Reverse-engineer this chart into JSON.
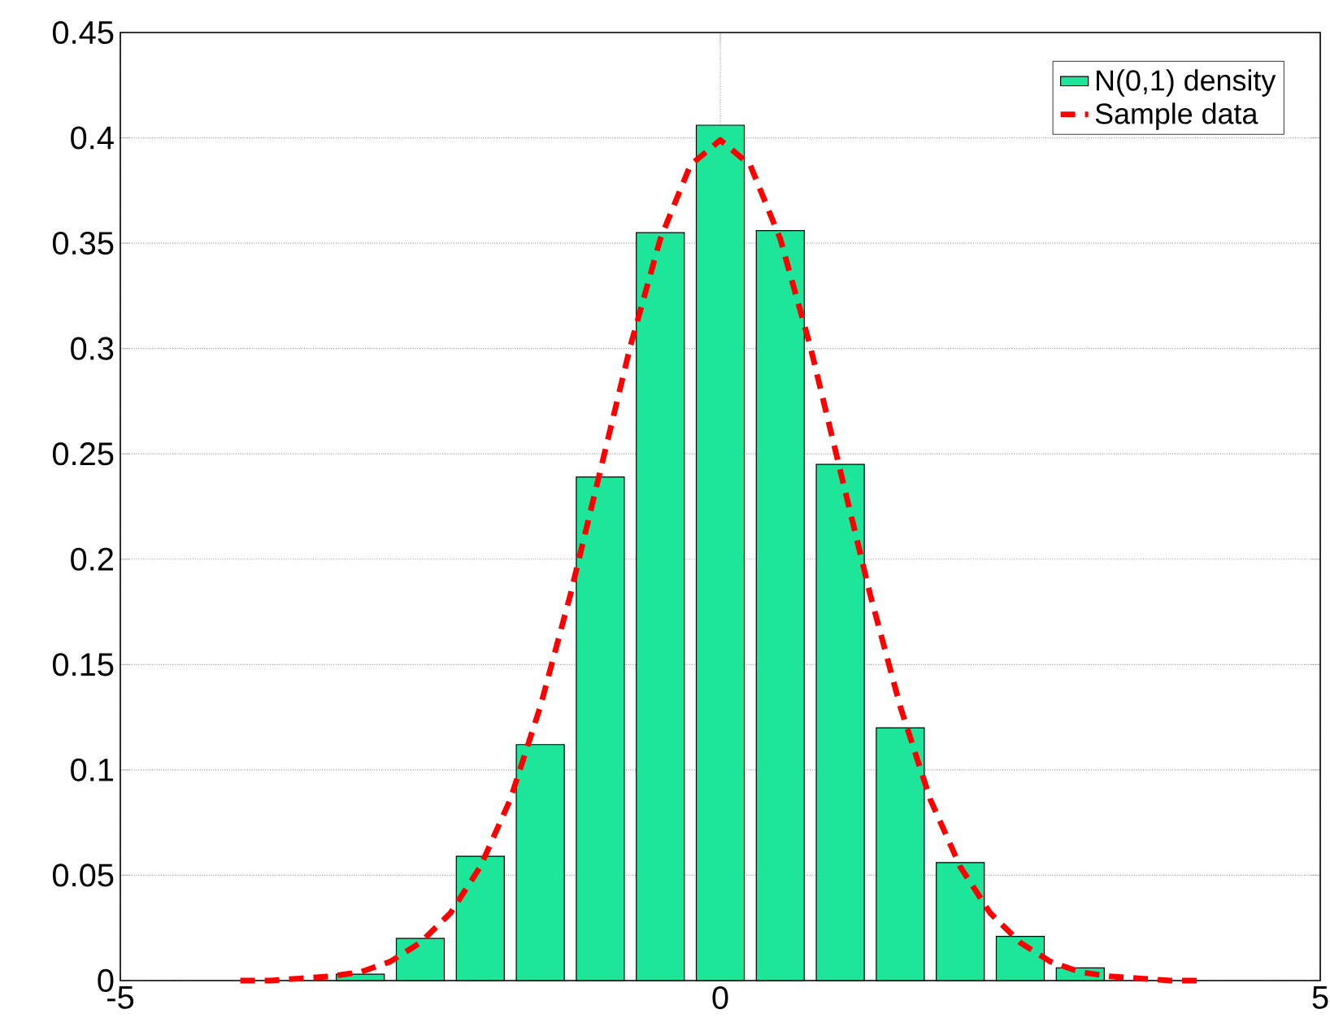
{
  "chart_data": {
    "type": "bar",
    "x": [
      -3,
      -2.5,
      -2,
      -1.5,
      -1,
      -0.5,
      0,
      0.5,
      1,
      1.5,
      2,
      2.5,
      3
    ],
    "series": [
      {
        "name": "N(0,1) density",
        "color": "#1de59a",
        "values": [
          0.003,
          0.02,
          0.059,
          0.112,
          0.239,
          0.355,
          0.406,
          0.356,
          0.245,
          0.12,
          0.056,
          0.021,
          0.006
        ]
      },
      {
        "name": "Sample data",
        "type": "line",
        "color": "#ff0000",
        "line_style": "dashed",
        "x": [
          -4,
          -3.75,
          -3.5,
          -3.25,
          -3,
          -2.75,
          -2.5,
          -2.25,
          -2,
          -1.75,
          -1.5,
          -1.25,
          -1,
          -0.75,
          -0.5,
          -0.25,
          0,
          0.25,
          0.5,
          0.75,
          1,
          1.25,
          1.5,
          1.75,
          2,
          2.25,
          2.5,
          2.75,
          3,
          3.25,
          3.5,
          3.75,
          4
        ],
        "values": [
          0.0,
          0.0,
          0.001,
          0.002,
          0.004,
          0.009,
          0.018,
          0.032,
          0.054,
          0.086,
          0.13,
          0.183,
          0.242,
          0.301,
          0.352,
          0.387,
          0.399,
          0.387,
          0.352,
          0.301,
          0.242,
          0.183,
          0.13,
          0.086,
          0.054,
          0.032,
          0.018,
          0.009,
          0.004,
          0.002,
          0.001,
          0.0,
          0.0
        ]
      }
    ],
    "xlim": [
      -5,
      5
    ],
    "xticks": [
      -5,
      0,
      5
    ],
    "ylim": [
      0,
      0.45
    ],
    "yticks": [
      0,
      0.05,
      0.1,
      0.15,
      0.2,
      0.25,
      0.3,
      0.35,
      0.4,
      0.45
    ],
    "grid": true,
    "legend": "top right"
  }
}
